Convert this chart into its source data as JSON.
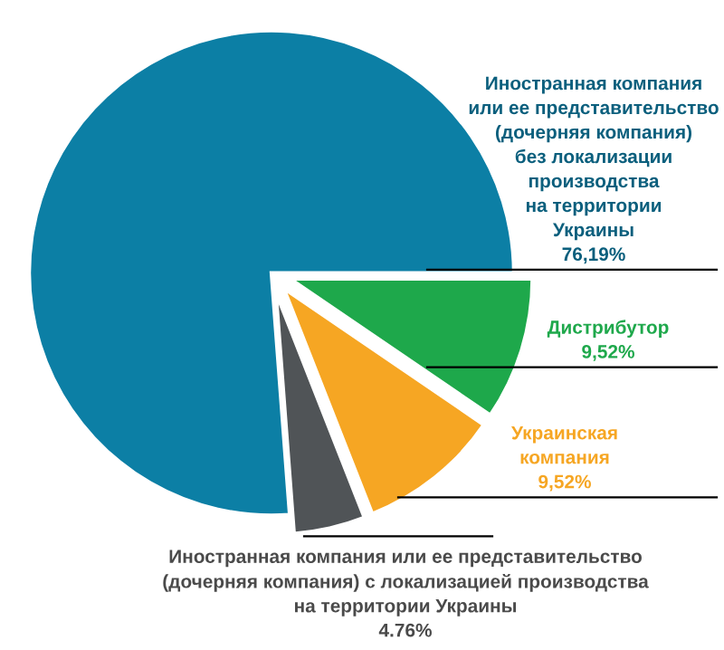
{
  "chart_data": {
    "type": "pie",
    "categories": [
      "Иностранная компания\nили ее представительство\n(дочерняя компания)\nбез локализации\nпроизводства\nна территории\nУкраины",
      "Дистрибутор",
      "Украинская\nкомпания",
      "Иностранная компания или ее представительство\n(дочерняя компания) с локализацией производства\nна территории Украины"
    ],
    "values": [
      76.19,
      9.52,
      9.52,
      4.76
    ],
    "value_labels": [
      "76,19%",
      "9,52%",
      "9,52%",
      "4.76%"
    ],
    "colors": [
      "#0c7fa5",
      "#1ea84b",
      "#f6a623",
      "#505457"
    ],
    "legend": false
  }
}
